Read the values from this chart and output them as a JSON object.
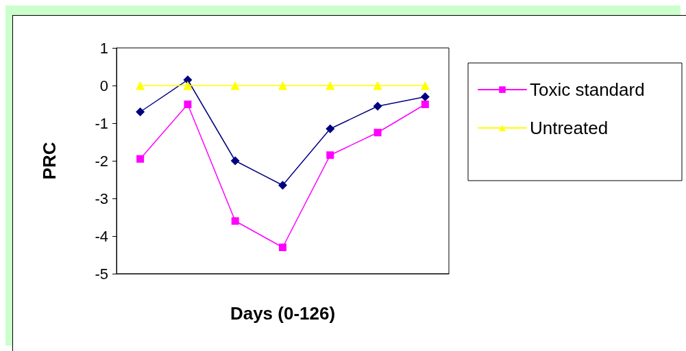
{
  "chart_data": {
    "type": "line",
    "xlabel": "Days (0-126)",
    "ylabel": "PRC",
    "categories": [
      null,
      null,
      null,
      null,
      null,
      null,
      null
    ],
    "ylim": [
      -5,
      1
    ],
    "yticks": [
      -5,
      -4,
      -3,
      -2,
      -1,
      0,
      1
    ],
    "grid": false,
    "legend": "right",
    "line_style": "solid",
    "series": [
      {
        "color": "#000080",
        "marker": "diamond",
        "values": [
          -0.7,
          0.15,
          -2.0,
          -2.65,
          -1.15,
          -0.55,
          -0.3
        ]
      },
      {
        "name": "Toxic standard",
        "color": "#ff00ff",
        "marker": "square",
        "values": [
          -1.95,
          -0.5,
          -3.6,
          -4.3,
          -1.85,
          -1.25,
          -0.5
        ]
      },
      {
        "name": "Untreated",
        "color": "#ffff00",
        "marker": "triangle",
        "values": [
          0,
          0,
          0,
          0,
          0,
          0,
          0
        ]
      }
    ]
  }
}
